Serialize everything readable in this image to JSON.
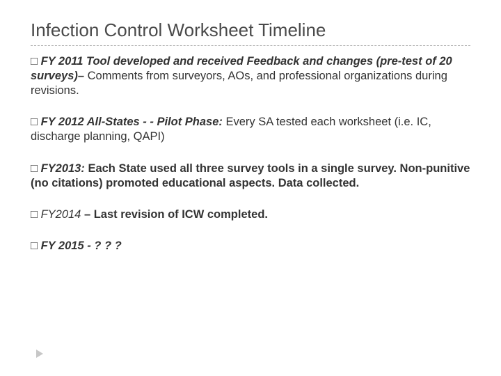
{
  "title": "Infection Control Worksheet Timeline",
  "items": [
    {
      "lead_bi": "FY 2011 Tool developed and received Feedback and changes (pre-test of 20 surveys)– ",
      "tail": "Comments from surveyors, AOs, and professional organizations during revisions."
    },
    {
      "lead_bi": "FY 2012 All-States - - Pilot Phase: ",
      "tail": "Every SA tested each worksheet (i.e. IC, discharge planning, QAPI)"
    },
    {
      "lead_bi": "FY2013: ",
      "tail_b": "Each State used all three survey tools in a single survey. Non-punitive (no citations) promoted educational aspects. Data collected."
    },
    {
      "lead_i": "FY2014 ",
      "tail_b": "– Last revision of ICW completed."
    },
    {
      "lead_bi": "FY 2015 - ? ? ?"
    }
  ],
  "colors": {
    "text": "#3f3f3f",
    "title": "#4a4a4a",
    "divider": "#b0b0b0",
    "arrow": "#c7c7c7",
    "background": "#ffffff"
  }
}
